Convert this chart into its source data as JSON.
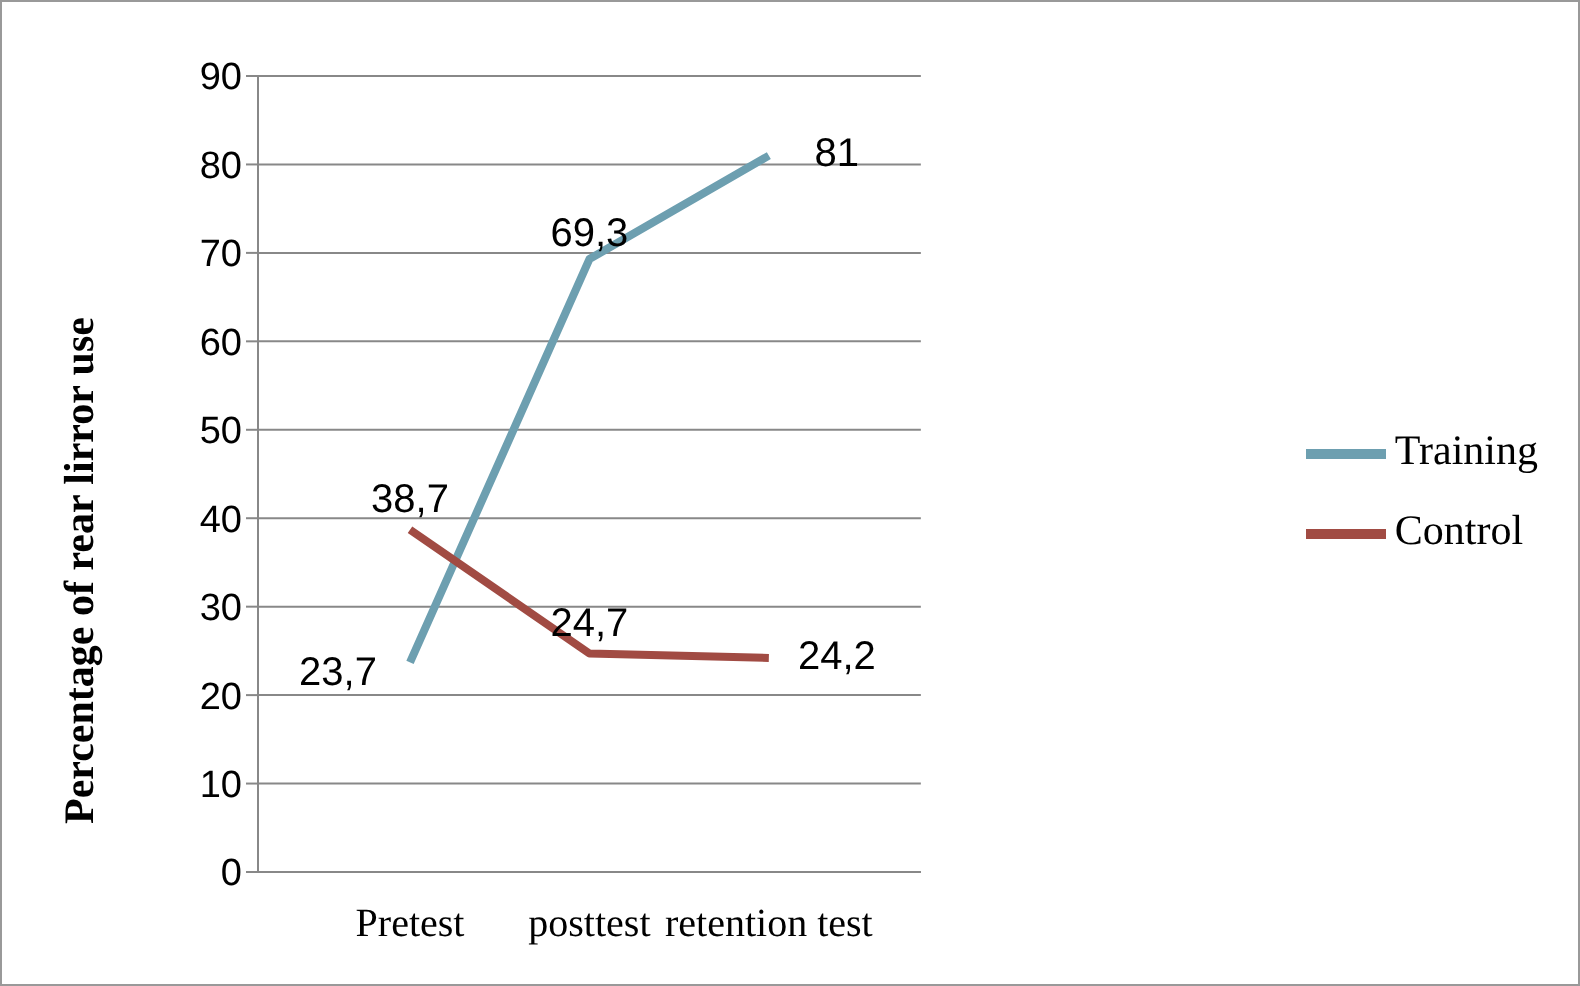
{
  "chart_data": {
    "type": "line",
    "ylabel": "Percentage of rear lirror use",
    "categories": [
      "Pretest",
      "posttest",
      "retention test"
    ],
    "series": [
      {
        "name": "Training",
        "color": "#6d9fb0",
        "values": [
          23.7,
          69.3,
          81
        ],
        "value_labels": [
          "23,7",
          "69,3",
          "81"
        ]
      },
      {
        "name": "Control",
        "color": "#a14b43",
        "values": [
          38.7,
          24.7,
          24.2
        ],
        "value_labels": [
          "38,7",
          "24,7",
          "24,2"
        ]
      }
    ],
    "ylim": [
      0,
      90
    ],
    "yticks": [
      0,
      10,
      20,
      30,
      40,
      50,
      60,
      70,
      80,
      90
    ],
    "grid": "y",
    "legend": "right",
    "marker": "none",
    "line_style": "solid"
  }
}
